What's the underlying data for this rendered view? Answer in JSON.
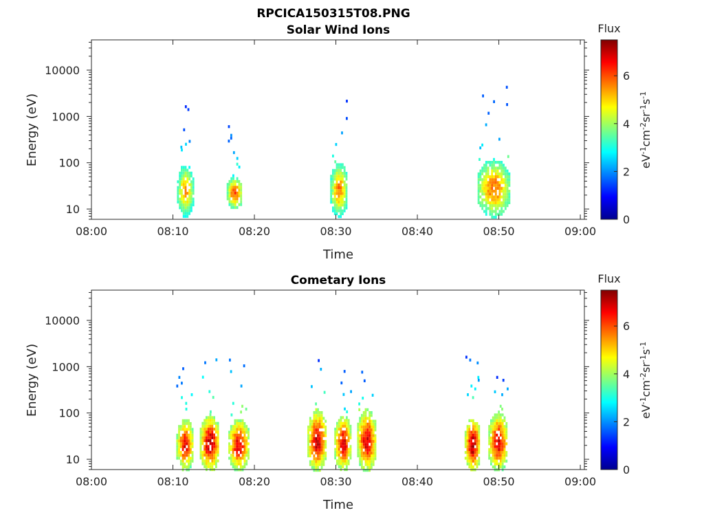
{
  "figure": {
    "filename": "RPCICA150315T08.PNG"
  },
  "colorbar": {
    "title": "Flux",
    "label": "eV-1cm-2sr-1s-1",
    "ticks": [
      "0",
      "2",
      "4",
      "6"
    ],
    "range": [
      0,
      7.5
    ],
    "colormap": "jet"
  },
  "chart_data": [
    {
      "type": "heatmap",
      "title": "Solar Wind Ions",
      "xlabel": "Time",
      "ylabel": "Energy (eV)",
      "x_ticks": [
        "08:00",
        "08:10",
        "08:20",
        "08:30",
        "08:40",
        "08:50",
        "09:00"
      ],
      "y_ticks": [
        "10",
        "100",
        "1000",
        "10000"
      ],
      "xlim_minutes_after_0800": [
        0,
        60.5
      ],
      "ylim_eV": [
        6,
        45000
      ],
      "yscale": "log",
      "clusters": [
        {
          "t": [
            10.5,
            12.4
          ],
          "core_eV": [
            10,
            70
          ],
          "peak_flux": 5.6,
          "tail_to_eV": 1900
        },
        {
          "t": [
            16.6,
            18.4
          ],
          "core_eV": [
            14,
            40
          ],
          "peak_flux": 6.2,
          "tail_to_eV": 900
        },
        {
          "t": [
            29.3,
            31.3
          ],
          "core_eV": [
            10,
            80
          ],
          "peak_flux": 5.8,
          "tail_to_eV": 2600
        },
        {
          "t": [
            47.4,
            51.2
          ],
          "core_eV": [
            10,
            90
          ],
          "peak_flux": 6.0,
          "tail_to_eV": 6500
        }
      ]
    },
    {
      "type": "heatmap",
      "title": "Cometary Ions",
      "xlabel": "Time",
      "ylabel": "Energy (eV)",
      "x_ticks": [
        "08:00",
        "08:10",
        "08:20",
        "08:30",
        "08:40",
        "08:50",
        "09:00"
      ],
      "y_ticks": [
        "10",
        "100",
        "1000",
        "10000"
      ],
      "xlim_minutes_after_0800": [
        0,
        60.5
      ],
      "ylim_eV": [
        6,
        45000
      ],
      "yscale": "log",
      "clusters": [
        {
          "t": [
            10.4,
            12.4
          ],
          "core_eV": [
            8,
            60
          ],
          "peak_flux": 6.8,
          "tail_to_eV": 1000
        },
        {
          "t": [
            13.3,
            15.6
          ],
          "core_eV": [
            8,
            70
          ],
          "peak_flux": 7.3,
          "tail_to_eV": 3500
        },
        {
          "t": [
            16.8,
            19.2
          ],
          "core_eV": [
            8,
            60
          ],
          "peak_flux": 7.0,
          "tail_to_eV": 2200
        },
        {
          "t": [
            26.5,
            28.7
          ],
          "core_eV": [
            8,
            90
          ],
          "peak_flux": 7.2,
          "tail_to_eV": 1600
        },
        {
          "t": [
            29.8,
            31.8
          ],
          "core_eV": [
            8,
            70
          ],
          "peak_flux": 6.9,
          "tail_to_eV": 900
        },
        {
          "t": [
            32.6,
            34.8
          ],
          "core_eV": [
            8,
            90
          ],
          "peak_flux": 7.1,
          "tail_to_eV": 900
        },
        {
          "t": [
            45.8,
            47.6
          ],
          "core_eV": [
            8,
            60
          ],
          "peak_flux": 7.4,
          "tail_to_eV": 2000
        },
        {
          "t": [
            48.7,
            51.0
          ],
          "core_eV": [
            8,
            80
          ],
          "peak_flux": 7.0,
          "tail_to_eV": 700
        }
      ]
    }
  ]
}
